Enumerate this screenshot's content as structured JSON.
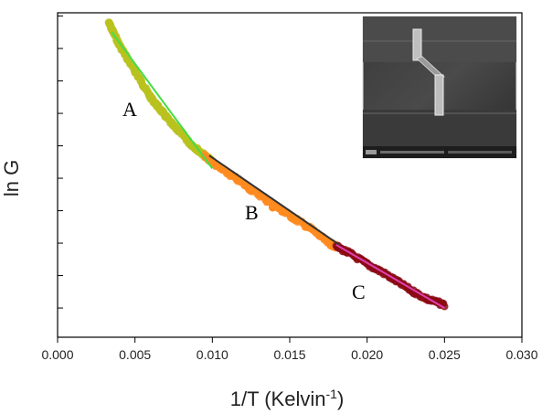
{
  "chart_data": {
    "type": "scatter",
    "title": "",
    "xlabel": "1/T (Kelvin",
    "xlabel_sup": "-1",
    "xlabel_suffix": ")",
    "ylabel": "ln G",
    "xlim": [
      0.0,
      0.03
    ],
    "ylim": [
      0,
      1
    ],
    "x_ticks": [
      0.0,
      0.005,
      0.01,
      0.015,
      0.02,
      0.025,
      0.03
    ],
    "x_tick_labels": [
      "0.000",
      "0.005",
      "0.010",
      "0.015",
      "0.020",
      "0.025",
      "0.030"
    ],
    "y_tick_values": [
      0.09,
      0.19,
      0.29,
      0.39,
      0.49,
      0.59,
      0.69,
      0.79,
      0.89,
      0.99
    ],
    "y_tick_labels_shown": false,
    "grid": false,
    "inset": "SEM micrograph of nanowire device (top-right)",
    "series": [
      {
        "label": "A",
        "marker_color": "#b8c21e",
        "x": [
          0.0033,
          0.0036,
          0.004,
          0.0045,
          0.005,
          0.0055,
          0.006,
          0.0065,
          0.007,
          0.0075,
          0.008,
          0.0085,
          0.009,
          0.0095,
          0.01
        ],
        "y": [
          0.97,
          0.94,
          0.9,
          0.86,
          0.82,
          0.78,
          0.74,
          0.71,
          0.68,
          0.65,
          0.63,
          0.6,
          0.58,
          0.56,
          0.54
        ]
      },
      {
        "label": "B",
        "marker_color": "#ff8a1e",
        "x": [
          0.0095,
          0.0105,
          0.0115,
          0.0125,
          0.0135,
          0.0145,
          0.0155,
          0.0165,
          0.0175,
          0.018
        ],
        "y": [
          0.56,
          0.52,
          0.49,
          0.455,
          0.425,
          0.39,
          0.36,
          0.33,
          0.29,
          0.28
        ]
      },
      {
        "label": "C",
        "marker_color": "#8b0a14",
        "x": [
          0.018,
          0.019,
          0.02,
          0.021,
          0.022,
          0.023,
          0.024,
          0.025
        ],
        "y": [
          0.28,
          0.255,
          0.225,
          0.2,
          0.17,
          0.14,
          0.115,
          0.1
        ]
      }
    ],
    "fits": [
      {
        "label": "fit-A",
        "color": "#44dd44",
        "x": [
          0.0035,
          0.01
        ],
        "y": [
          0.94,
          0.52
        ]
      },
      {
        "label": "fit-B",
        "color": "#333333",
        "x": [
          0.0098,
          0.0182
        ],
        "y": [
          0.56,
          0.285
        ]
      },
      {
        "label": "fit-C",
        "color": "#e040b0",
        "x": [
          0.018,
          0.025
        ],
        "y": [
          0.285,
          0.09
        ]
      }
    ]
  }
}
